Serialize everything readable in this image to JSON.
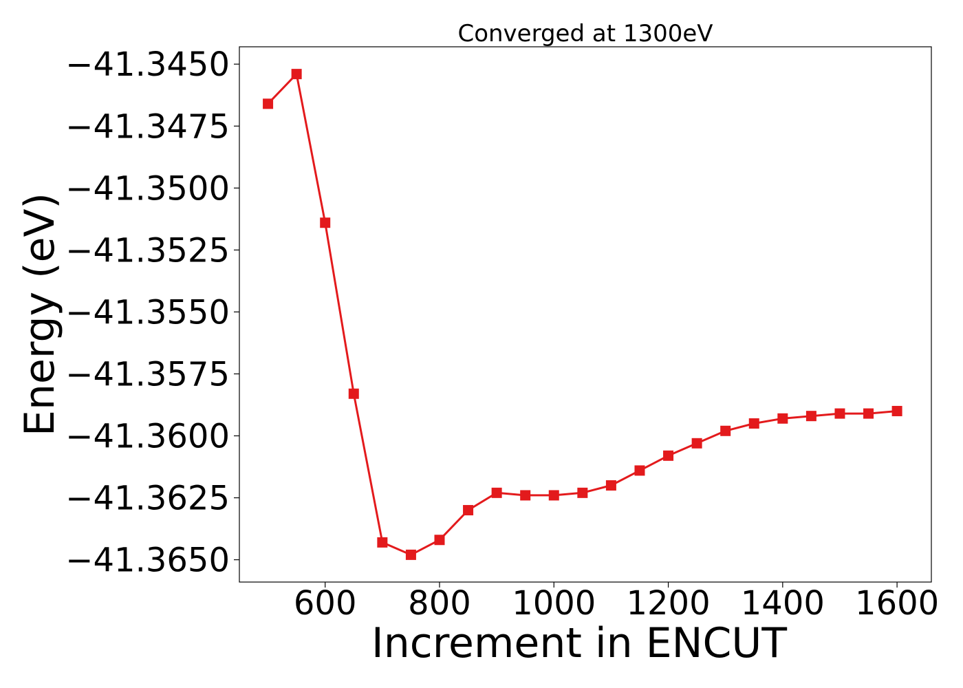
{
  "chart_data": {
    "type": "line",
    "title": "Converged at 1300eV",
    "xlabel": "Increment in ENCUT",
    "ylabel": "Energy (eV)",
    "xlim": [
      450,
      1660
    ],
    "ylim": [
      -41.3659,
      -41.3443
    ],
    "x_ticks": [
      600,
      800,
      1000,
      1200,
      1400,
      1600
    ],
    "x_tick_labels": [
      "600",
      "800",
      "1000",
      "1200",
      "1400",
      "1600"
    ],
    "y_ticks": [
      -41.345,
      -41.3475,
      -41.35,
      -41.3525,
      -41.355,
      -41.3575,
      -41.36,
      -41.3625,
      -41.365
    ],
    "y_tick_labels": [
      "−41.3450",
      "−41.3475",
      "−41.3500",
      "−41.3525",
      "−41.3550",
      "−41.3575",
      "−41.3600",
      "−41.3625",
      "−41.3650"
    ],
    "grid": false,
    "legend": false,
    "series": [
      {
        "color": "#e31a1c",
        "marker": "square",
        "x": [
          500,
          550,
          600,
          650,
          700,
          750,
          800,
          850,
          900,
          950,
          1000,
          1050,
          1100,
          1150,
          1200,
          1250,
          1300,
          1350,
          1400,
          1450,
          1500,
          1550,
          1600
        ],
        "y": [
          -41.3466,
          -41.3454,
          -41.3514,
          -41.3583,
          -41.3643,
          -41.3648,
          -41.3642,
          -41.363,
          -41.3623,
          -41.3624,
          -41.3624,
          -41.3623,
          -41.362,
          -41.3614,
          -41.3608,
          -41.3603,
          -41.3598,
          -41.3595,
          -41.3593,
          -41.3592,
          -41.3591,
          -41.3591,
          -41.359
        ]
      }
    ]
  }
}
